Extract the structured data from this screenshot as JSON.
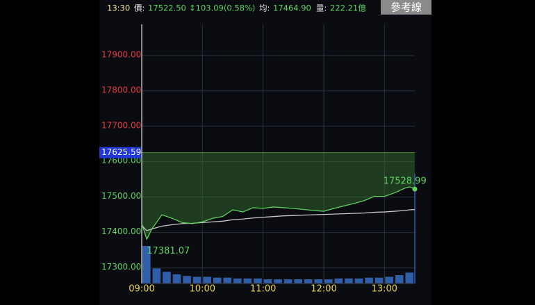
{
  "header": {
    "time": "13:30",
    "price_label": "價:",
    "price": "17522.50",
    "change": "↕103.09(0.58%)",
    "avg_label": "均:",
    "avg": "17464.90",
    "volume_label": "量:",
    "volume": "222.21億",
    "button": "參考線"
  },
  "chart_data": {
    "type": "line",
    "xlim": [
      0,
      270
    ],
    "xticks": [
      {
        "value": 0,
        "label": "09:00"
      },
      {
        "value": 60,
        "label": "10:00"
      },
      {
        "value": 120,
        "label": "11:00"
      },
      {
        "value": 180,
        "label": "12:00"
      },
      {
        "value": 240,
        "label": "13:00"
      }
    ],
    "ylim": [
      17256,
      17988
    ],
    "yticks": [
      {
        "value": 17300,
        "label": "17300.00"
      },
      {
        "value": 17400,
        "label": "17400.00"
      },
      {
        "value": 17500,
        "label": "17500.00"
      },
      {
        "value": 17600,
        "label": "17600.00"
      },
      {
        "value": 17700,
        "label": "17700.00"
      },
      {
        "value": 17800,
        "label": "17800.00"
      },
      {
        "value": 17900,
        "label": "17900.00"
      }
    ],
    "grid": true,
    "reference": 17625.59,
    "up_color": "#e23b3b",
    "down_color": "#5fd35f",
    "x": [
      0,
      5,
      10,
      20,
      30,
      40,
      50,
      60,
      70,
      80,
      90,
      100,
      110,
      120,
      130,
      140,
      150,
      160,
      170,
      180,
      190,
      200,
      210,
      220,
      230,
      240,
      250,
      260,
      265,
      270
    ],
    "series": [
      {
        "name": "價",
        "color": "#5fd35f",
        "values": [
          17425,
          17381.07,
          17410,
          17450,
          17440,
          17428,
          17425,
          17430,
          17440,
          17445,
          17464,
          17458,
          17470,
          17468,
          17472,
          17470,
          17468,
          17465,
          17462,
          17460,
          17468,
          17475,
          17482,
          17490,
          17502,
          17502,
          17512,
          17525,
          17528.99,
          17522.5
        ]
      },
      {
        "name": "均",
        "color": "#c8c8c8",
        "values": [
          17420,
          17405,
          17410,
          17418,
          17422,
          17425,
          17426,
          17428,
          17430,
          17432,
          17436,
          17438,
          17441,
          17443,
          17445,
          17447,
          17448,
          17449,
          17450,
          17451,
          17452,
          17453,
          17454,
          17455,
          17457,
          17458,
          17460,
          17462,
          17464,
          17464.9
        ]
      }
    ],
    "low": {
      "x": 5,
      "value": 17381.07
    },
    "high": {
      "x": 265,
      "value": 17528.99
    },
    "volume": {
      "color": "#2f5fa8",
      "vlim": [
        0,
        50
      ],
      "x": [
        0,
        10,
        20,
        30,
        40,
        50,
        60,
        70,
        80,
        90,
        100,
        110,
        120,
        130,
        140,
        150,
        160,
        170,
        180,
        190,
        200,
        210,
        220,
        230,
        240,
        250,
        260
      ],
      "values": [
        45,
        18,
        14,
        11,
        9,
        8,
        8,
        7,
        7,
        6,
        6,
        6,
        5,
        5,
        5,
        5,
        5,
        5,
        5,
        6,
        6,
        6,
        7,
        7,
        8,
        10,
        13
      ]
    }
  }
}
